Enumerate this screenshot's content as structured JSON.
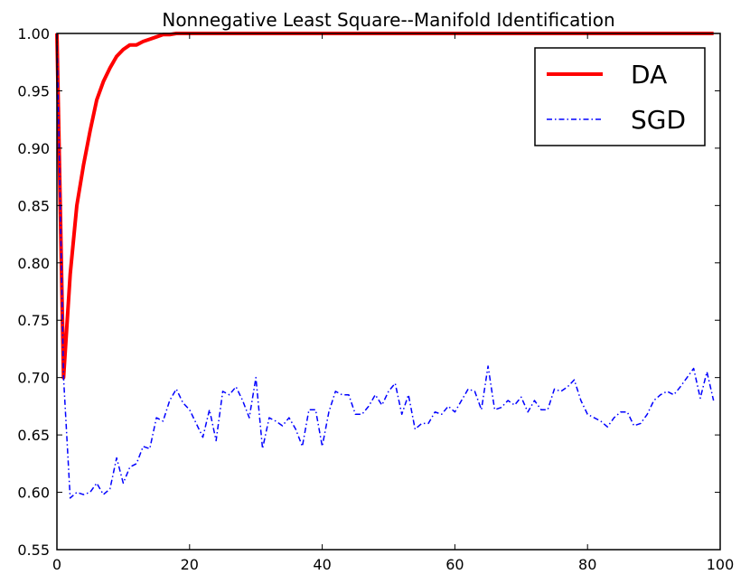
{
  "chart_data": {
    "type": "line",
    "title": "Nonnegative Least Square--Manifold Identification",
    "xlabel": "",
    "ylabel": "",
    "xlim": [
      0,
      100
    ],
    "ylim": [
      0.55,
      1.0
    ],
    "xticks": [
      "0",
      "20",
      "40",
      "60",
      "80",
      "100"
    ],
    "yticks": [
      "0.55",
      "0.60",
      "0.65",
      "0.70",
      "0.75",
      "0.80",
      "0.85",
      "0.90",
      "0.95",
      "1.00"
    ],
    "grid": false,
    "legend_position": "top-right",
    "series": [
      {
        "name": "DA",
        "color": "#ff0000",
        "style": "solid",
        "x": [
          0,
          1,
          2,
          3,
          4,
          5,
          6,
          7,
          8,
          9,
          10,
          11,
          12,
          13,
          14,
          15,
          16,
          17,
          18,
          19,
          20,
          25,
          30,
          40,
          50,
          60,
          70,
          80,
          90,
          99
        ],
        "y": [
          1.0,
          0.7,
          0.79,
          0.85,
          0.885,
          0.915,
          0.942,
          0.958,
          0.97,
          0.98,
          0.986,
          0.99,
          0.99,
          0.993,
          0.995,
          0.997,
          0.999,
          0.999,
          1.0,
          1.0,
          1.0,
          1.0,
          1.0,
          1.0,
          1.0,
          1.0,
          1.0,
          1.0,
          1.0,
          1.0
        ]
      },
      {
        "name": "SGD",
        "color": "#0000ff",
        "style": "dashdot",
        "x": [
          0,
          1,
          2,
          3,
          4,
          5,
          6,
          7,
          8,
          9,
          10,
          11,
          12,
          13,
          14,
          15,
          16,
          17,
          18,
          19,
          20,
          21,
          22,
          23,
          24,
          25,
          26,
          27,
          28,
          29,
          30,
          31,
          32,
          33,
          34,
          35,
          36,
          37,
          38,
          39,
          40,
          41,
          42,
          43,
          44,
          45,
          46,
          47,
          48,
          49,
          50,
          51,
          52,
          53,
          54,
          55,
          56,
          57,
          58,
          59,
          60,
          61,
          62,
          63,
          64,
          65,
          66,
          67,
          68,
          69,
          70,
          71,
          72,
          73,
          74,
          75,
          76,
          77,
          78,
          79,
          80,
          81,
          82,
          83,
          84,
          85,
          86,
          87,
          88,
          89,
          90,
          91,
          92,
          93,
          94,
          95,
          96,
          97,
          98,
          99
        ],
        "y": [
          1.0,
          0.7,
          0.595,
          0.6,
          0.598,
          0.6,
          0.608,
          0.598,
          0.603,
          0.63,
          0.608,
          0.622,
          0.625,
          0.64,
          0.638,
          0.665,
          0.662,
          0.68,
          0.69,
          0.678,
          0.672,
          0.66,
          0.648,
          0.672,
          0.645,
          0.688,
          0.685,
          0.692,
          0.68,
          0.665,
          0.7,
          0.638,
          0.665,
          0.662,
          0.658,
          0.665,
          0.655,
          0.64,
          0.672,
          0.672,
          0.64,
          0.67,
          0.688,
          0.685,
          0.685,
          0.668,
          0.668,
          0.675,
          0.685,
          0.676,
          0.688,
          0.695,
          0.668,
          0.685,
          0.655,
          0.66,
          0.66,
          0.67,
          0.668,
          0.675,
          0.67,
          0.68,
          0.69,
          0.688,
          0.672,
          0.71,
          0.672,
          0.674,
          0.68,
          0.676,
          0.683,
          0.67,
          0.68,
          0.672,
          0.672,
          0.69,
          0.688,
          0.692,
          0.698,
          0.68,
          0.668,
          0.665,
          0.662,
          0.657,
          0.665,
          0.67,
          0.67,
          0.658,
          0.66,
          0.668,
          0.68,
          0.685,
          0.688,
          0.685,
          0.692,
          0.7,
          0.708,
          0.682,
          0.705,
          0.68
        ]
      }
    ]
  }
}
